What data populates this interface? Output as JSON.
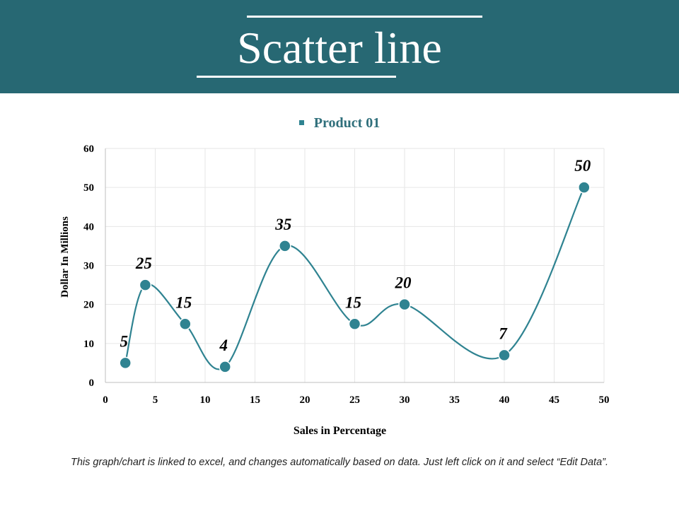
{
  "slide": {
    "title": "Scatter line",
    "footnote": "This graph/chart is linked to excel, and changes automatically based on data. Just left click on it and select “Edit Data”."
  },
  "colors": {
    "header_bg": "#276873",
    "series": "#2f8391",
    "legend_text": "#2f6f7b",
    "grid": "#e6e6e6"
  },
  "chart_data": {
    "type": "scatter",
    "title": "",
    "xlabel": "Sales in Percentage",
    "ylabel": "Dollar In Millions",
    "xlim": [
      0,
      50
    ],
    "ylim": [
      0,
      60
    ],
    "xticks": [
      0,
      5,
      10,
      15,
      20,
      25,
      30,
      35,
      40,
      45,
      50
    ],
    "yticks": [
      0,
      10,
      20,
      30,
      40,
      50,
      60
    ],
    "grid": true,
    "smooth": true,
    "legend_position": "top-center",
    "series": [
      {
        "name": "Product 01",
        "x": [
          2,
          4,
          8,
          12,
          18,
          25,
          30,
          40,
          48
        ],
        "y": [
          5,
          25,
          15,
          4,
          35,
          15,
          20,
          7,
          50
        ],
        "labels": [
          "5",
          "25",
          "15",
          "4",
          "35",
          "15",
          "20",
          "7",
          "50"
        ]
      }
    ]
  }
}
